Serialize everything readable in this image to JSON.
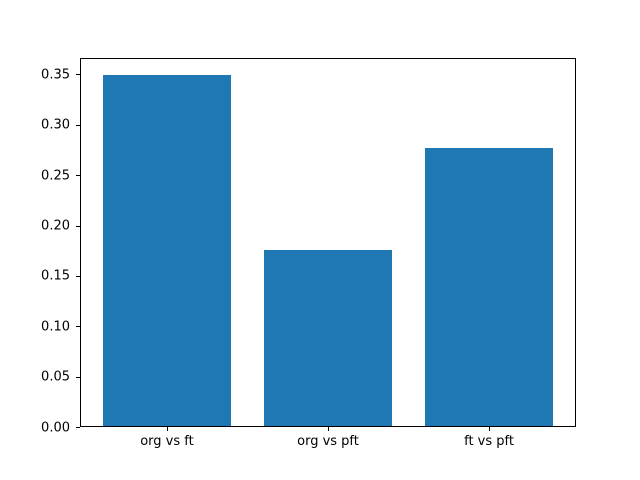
{
  "chart_data": {
    "type": "bar",
    "title": "",
    "xlabel": "",
    "ylabel": "",
    "categories": [
      "org vs ft",
      "org vs pft",
      "ft vs pft"
    ],
    "values": [
      0.349,
      0.176,
      0.277
    ],
    "ylim": [
      0,
      0.3665
    ],
    "yticks": [
      0.0,
      0.05,
      0.1,
      0.15,
      0.2,
      0.25,
      0.3,
      0.35
    ],
    "ytick_labels": [
      "0.00",
      "0.05",
      "0.10",
      "0.15",
      "0.20",
      "0.25",
      "0.30",
      "0.35"
    ],
    "bar_color": "#1f77b4",
    "bar_width_fraction": 0.8,
    "grid": false,
    "legend": null
  }
}
